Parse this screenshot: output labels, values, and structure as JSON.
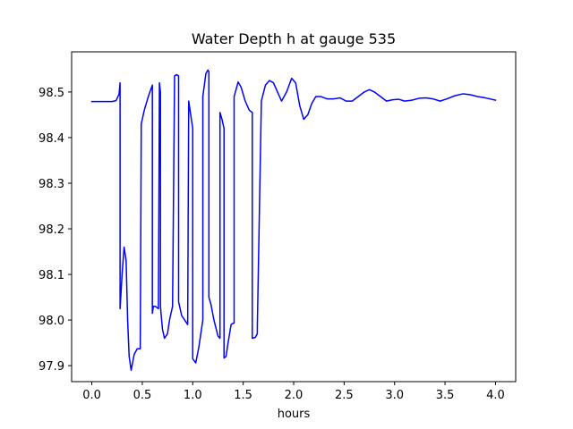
{
  "chart_data": {
    "type": "line",
    "title": "Water Depth h at gauge 535",
    "xlabel": "hours",
    "ylabel": "",
    "xlim": [
      -0.2,
      4.2
    ],
    "ylim": [
      97.865,
      98.588
    ],
    "xticks": [
      0.0,
      0.5,
      1.0,
      1.5,
      2.0,
      2.5,
      3.0,
      3.5,
      4.0
    ],
    "xtick_labels": [
      "0.0",
      "0.5",
      "1.0",
      "1.5",
      "2.0",
      "2.5",
      "3.0",
      "3.5",
      "4.0"
    ],
    "yticks": [
      97.9,
      98.0,
      98.1,
      98.2,
      98.3,
      98.4,
      98.5
    ],
    "ytick_labels": [
      "97.9",
      "98.0",
      "98.1",
      "98.2",
      "98.3",
      "98.4",
      "98.5"
    ],
    "grid": false,
    "legend": false,
    "series": [
      {
        "color": "#0000ff",
        "x": [
          0.0,
          0.1,
          0.2,
          0.24,
          0.27,
          0.28,
          0.28,
          0.3,
          0.32,
          0.34,
          0.355,
          0.37,
          0.39,
          0.42,
          0.45,
          0.48,
          0.49,
          0.49,
          0.52,
          0.56,
          0.6,
          0.6,
          0.61,
          0.63,
          0.66,
          0.67,
          0.67,
          0.68,
          0.68,
          0.7,
          0.72,
          0.75,
          0.77,
          0.8,
          0.82,
          0.84,
          0.86,
          0.86,
          0.87,
          0.89,
          0.92,
          0.95,
          0.96,
          0.96,
          0.98,
          1.0,
          1.0,
          1.03,
          1.06,
          1.1,
          1.1,
          1.13,
          1.15,
          1.16,
          1.16,
          1.18,
          1.21,
          1.25,
          1.27,
          1.27,
          1.29,
          1.31,
          1.31,
          1.33,
          1.35,
          1.38,
          1.4,
          1.41,
          1.41,
          1.45,
          1.48,
          1.52,
          1.56,
          1.59,
          1.59,
          1.62,
          1.64,
          1.64,
          1.68,
          1.72,
          1.76,
          1.8,
          1.84,
          1.88,
          1.93,
          1.98,
          2.02,
          2.06,
          2.1,
          2.14,
          2.18,
          2.22,
          2.27,
          2.33,
          2.4,
          2.46,
          2.52,
          2.58,
          2.64,
          2.7,
          2.75,
          2.8,
          2.86,
          2.92,
          2.98,
          3.04,
          3.1,
          3.17,
          3.24,
          3.31,
          3.38,
          3.45,
          3.52,
          3.6,
          3.68,
          3.75,
          3.82,
          3.9,
          3.96,
          4.0
        ],
        "y": [
          98.479,
          98.479,
          98.479,
          98.481,
          98.495,
          98.52,
          98.025,
          98.1,
          98.16,
          98.13,
          98.0,
          97.92,
          97.89,
          97.925,
          97.937,
          97.937,
          98.43,
          98.43,
          98.46,
          98.49,
          98.515,
          98.015,
          98.03,
          98.03,
          98.025,
          98.52,
          98.52,
          98.5,
          98.03,
          97.98,
          97.96,
          97.97,
          98.0,
          98.03,
          98.535,
          98.538,
          98.535,
          98.04,
          98.03,
          98.01,
          98.0,
          97.99,
          98.48,
          98.48,
          98.45,
          98.42,
          97.915,
          97.906,
          97.94,
          98.0,
          98.49,
          98.54,
          98.548,
          98.545,
          98.05,
          98.035,
          98.0,
          97.965,
          97.96,
          98.455,
          98.44,
          98.42,
          97.917,
          97.92,
          97.95,
          97.99,
          97.993,
          97.993,
          98.49,
          98.522,
          98.51,
          98.48,
          98.46,
          98.455,
          97.96,
          97.962,
          97.97,
          97.985,
          98.48,
          98.515,
          98.525,
          98.52,
          98.5,
          98.48,
          98.5,
          98.53,
          98.52,
          98.47,
          98.44,
          98.45,
          98.475,
          98.49,
          98.49,
          98.485,
          98.485,
          98.487,
          98.48,
          98.48,
          98.49,
          98.5,
          98.505,
          98.5,
          98.49,
          98.48,
          98.483,
          98.484,
          98.48,
          98.482,
          98.486,
          98.487,
          98.485,
          98.48,
          98.485,
          98.492,
          98.496,
          98.494,
          98.49,
          98.487,
          98.484,
          98.482
        ]
      }
    ]
  }
}
